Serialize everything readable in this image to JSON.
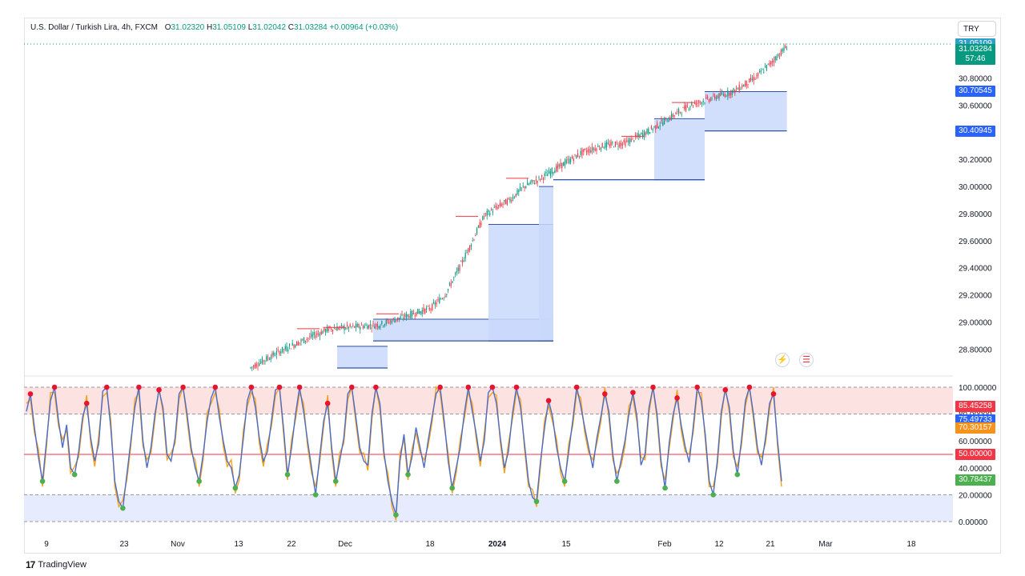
{
  "header": {
    "symbol": "U.S. Dollar / Turkish Lira, 4h, FXCM",
    "open_label": "O",
    "open": "31.02320",
    "high_label": "H",
    "high": "31.05109",
    "low_label": "L",
    "low": "31.02042",
    "close_label": "C",
    "close": "31.03284",
    "change": "+0.00964 (+0.03%)"
  },
  "currency_button": "TRY",
  "price_tags": [
    {
      "value": "31.05109",
      "sub": "",
      "color": "#2f9fc8",
      "y": 31.05109
    },
    {
      "value": "31.03284",
      "sub": "57:46",
      "color": "#089981",
      "y": 31.01
    },
    {
      "value": "30.70545",
      "sub": "",
      "color": "#2962ff",
      "y": 30.70545
    },
    {
      "value": "30.40945",
      "sub": "",
      "color": "#2962ff",
      "y": 30.40945
    }
  ],
  "osc_tags": [
    {
      "value": "85.45258",
      "color": "#f23645",
      "y": 85.45
    },
    {
      "value": "75.49733",
      "color": "#2962ff",
      "y": 75.5
    },
    {
      "value": "70.30157",
      "color": "#f7931a",
      "y": 69.5
    },
    {
      "value": "50.00000",
      "color": "#f23645",
      "y": 50
    },
    {
      "value": "30.78437",
      "color": "#4caf50",
      "y": 30.78
    }
  ],
  "footer": {
    "brand": "TradingView"
  },
  "colors": {
    "up": "#089981",
    "down": "#f23645",
    "zone": "#c9d8fb",
    "zone_line": "#2f55a4",
    "osc_blue": "#4a6cc7",
    "osc_orange": "#f7a21b",
    "overbought": "#fde2e2",
    "oversold": "#e6ecfd"
  },
  "chart_data": [
    {
      "type": "candlestick",
      "title": "U.S. Dollar / Turkish Lira, 4h, FXCM",
      "ylim": [
        28.66,
        31.14
      ],
      "y_ticks": [
        "30.80000",
        "30.60000",
        "30.40000",
        "30.20000",
        "30.00000",
        "29.80000",
        "29.60000",
        "29.40000",
        "29.20000",
        "29.00000",
        "28.80000"
      ],
      "y_tick_values": [
        30.8,
        30.6,
        30.4,
        30.2,
        30.0,
        29.8,
        29.6,
        29.4,
        29.2,
        29.0,
        28.8
      ],
      "x_ticks": [
        "9",
        "23",
        "Nov",
        "13",
        "22",
        "Dec",
        "18",
        "2024",
        "15",
        "Feb",
        "12",
        "21",
        "Mar",
        "18"
      ],
      "x_tick_bold": [
        false,
        false,
        false,
        false,
        false,
        false,
        false,
        true,
        false,
        false,
        false,
        false,
        false,
        false
      ],
      "trend": [
        [
          0,
          28.66
        ],
        [
          20,
          28.78
        ],
        [
          40,
          28.88
        ],
        [
          55,
          28.95
        ],
        [
          70,
          28.96
        ],
        [
          90,
          28.98
        ],
        [
          110,
          29.05
        ],
        [
          125,
          29.1
        ],
        [
          135,
          29.2
        ],
        [
          145,
          29.4
        ],
        [
          155,
          29.62
        ],
        [
          162,
          29.78
        ],
        [
          170,
          29.84
        ],
        [
          180,
          29.9
        ],
        [
          190,
          30.0
        ],
        [
          200,
          30.05
        ],
        [
          215,
          30.15
        ],
        [
          230,
          30.25
        ],
        [
          245,
          30.3
        ],
        [
          260,
          30.32
        ],
        [
          275,
          30.4
        ],
        [
          290,
          30.5
        ],
        [
          305,
          30.6
        ],
        [
          320,
          30.65
        ],
        [
          335,
          30.7
        ],
        [
          350,
          30.8
        ],
        [
          360,
          30.9
        ],
        [
          372,
          31.03
        ]
      ],
      "resistance_marks": [
        [
          40,
          28.95
        ],
        [
          58,
          28.96
        ],
        [
          95,
          29.06
        ],
        [
          150,
          29.78
        ],
        [
          185,
          30.06
        ],
        [
          265,
          30.37
        ],
        [
          300,
          30.62
        ]
      ],
      "demand_zones": [
        {
          "top": 28.82,
          "bottom": 28.66,
          "x0": 60,
          "x1": 95
        },
        {
          "top": 29.02,
          "bottom": 28.86,
          "x0": 85,
          "x1": 210
        },
        {
          "top": 29.72,
          "bottom": 28.86,
          "x0": 165,
          "x1": 210
        },
        {
          "top": 30.0,
          "bottom": 28.86,
          "x0": 200,
          "x1": 210
        },
        {
          "top": 30.05,
          "bottom": 30.05,
          "x0": 210,
          "x1": 315
        },
        {
          "top": 30.5,
          "bottom": 30.05,
          "x0": 280,
          "x1": 315
        },
        {
          "top": 30.7,
          "bottom": 30.41,
          "x0": 315,
          "x1": 372
        }
      ],
      "high_marker": 31.05109
    },
    {
      "type": "line",
      "title": "",
      "ylim": [
        0,
        100
      ],
      "y_ticks": [
        "100.00000",
        "80.00000",
        "60.00000",
        "40.00000",
        "20.00000",
        "0.00000"
      ],
      "y_tick_values": [
        100,
        80,
        60,
        40,
        20,
        0
      ],
      "levels": {
        "overbought_top": 100,
        "overbought_bottom": 80,
        "mid": 50,
        "oversold_top": 20,
        "oversold_bottom": 0
      },
      "series": [
        {
          "values": [
            82,
            95,
            70,
            48,
            30,
            60,
            90,
            100,
            75,
            55,
            72,
            40,
            35,
            52,
            78,
            88,
            62,
            45,
            58,
            97,
            100,
            70,
            30,
            15,
            10,
            35,
            60,
            85,
            100,
            60,
            40,
            55,
            80,
            98,
            85,
            50,
            45,
            62,
            95,
            100,
            80,
            55,
            40,
            30,
            50,
            75,
            92,
            100,
            78,
            60,
            45,
            40,
            25,
            35,
            62,
            90,
            100,
            85,
            62,
            45,
            52,
            75,
            98,
            100,
            70,
            35,
            55,
            80,
            100,
            82,
            60,
            40,
            20,
            48,
            75,
            88,
            55,
            30,
            45,
            62,
            95,
            100,
            78,
            55,
            45,
            42,
            80,
            100,
            88,
            52,
            30,
            15,
            5,
            45,
            65,
            35,
            48,
            70,
            55,
            40,
            60,
            78,
            95,
            100,
            75,
            45,
            25,
            40,
            55,
            80,
            100,
            82,
            65,
            45,
            60,
            96,
            100,
            88,
            62,
            40,
            52,
            80,
            100,
            85,
            58,
            30,
            18,
            15,
            45,
            70,
            90,
            78,
            55,
            40,
            30,
            52,
            75,
            100,
            86,
            70,
            55,
            40,
            62,
            78,
            95,
            82,
            50,
            30,
            45,
            60,
            80,
            96,
            78,
            42,
            50,
            85,
            100,
            80,
            45,
            25,
            58,
            80,
            92,
            72,
            56,
            44,
            70,
            100,
            90,
            65,
            30,
            20,
            45,
            82,
            98,
            85,
            52,
            35,
            60,
            90,
            100,
            80,
            55,
            42,
            62,
            88,
            95,
            60,
            30
          ]
        }
      ]
    }
  ]
}
